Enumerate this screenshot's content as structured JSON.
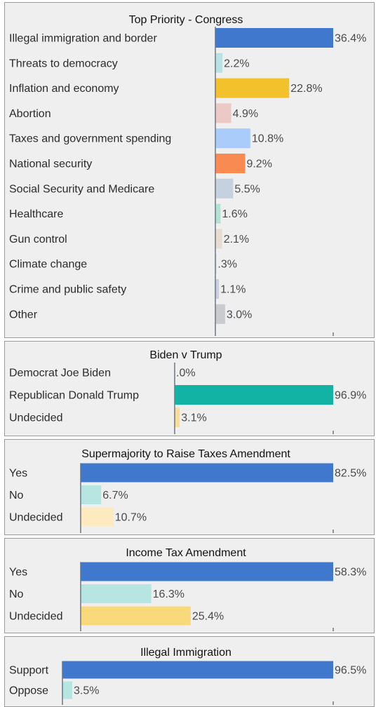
{
  "chart_data": [
    {
      "type": "bar",
      "orientation": "horizontal",
      "title": "Top Priority - Congress",
      "categories": [
        "Illegal immigration and border",
        "Threats to democracy",
        "Inflation and economy",
        "Abortion",
        "Taxes and government spending",
        "National security",
        "Social Security and Medicare",
        "Healthcare",
        "Gun control",
        "Climate change",
        "Crime and public safety",
        "Other"
      ],
      "values": [
        36.4,
        2.2,
        22.8,
        4.9,
        10.8,
        9.2,
        5.5,
        1.6,
        2.1,
        0.3,
        1.1,
        3.0
      ],
      "value_labels": [
        "36.4%",
        "2.2%",
        "22.8%",
        "4.9%",
        "10.8%",
        "9.2%",
        "5.5%",
        "1.6%",
        "2.1%",
        ".3%",
        "1.1%",
        "3.0%"
      ],
      "colors": [
        "#3f78cc",
        "#b7e3e3",
        "#f2c12b",
        "#edc9c6",
        "#aaccfa",
        "#f98a52",
        "#c5d1df",
        "#b5e0d8",
        "#e4ddd0",
        "#cfd8de",
        "#c9cfe0",
        "#c9cbce"
      ],
      "xlim": [
        0,
        36.4
      ]
    },
    {
      "type": "bar",
      "orientation": "horizontal",
      "title": "Biden v Trump",
      "categories": [
        "Democrat Joe Biden",
        "Republican Donald Trump",
        "Undecided"
      ],
      "values": [
        0.0,
        96.9,
        3.1
      ],
      "value_labels": [
        ".0%",
        "96.9%",
        "3.1%"
      ],
      "colors": [
        "#8fb0e0",
        "#12b2a4",
        "#f8df99"
      ],
      "xlim": [
        0,
        96.9
      ]
    },
    {
      "type": "bar",
      "orientation": "horizontal",
      "title": "Supermajority to Raise Taxes Amendment",
      "categories": [
        "Yes",
        "No",
        "Undecided"
      ],
      "values": [
        82.5,
        6.7,
        10.7
      ],
      "value_labels": [
        "82.5%",
        "6.7%",
        "10.7%"
      ],
      "colors": [
        "#3f78cc",
        "#b7e5e2",
        "#fdeabf"
      ],
      "xlim": [
        0,
        82.5
      ]
    },
    {
      "type": "bar",
      "orientation": "horizontal",
      "title": "Income Tax Amendment",
      "categories": [
        "Yes",
        "No",
        "Undecided"
      ],
      "values": [
        58.3,
        16.3,
        25.4
      ],
      "value_labels": [
        "58.3%",
        "16.3%",
        "25.4%"
      ],
      "colors": [
        "#3f78cc",
        "#b7e5e2",
        "#f8d97c"
      ],
      "xlim": [
        0,
        58.3
      ]
    },
    {
      "type": "bar",
      "orientation": "horizontal",
      "title": "Illegal Immigration",
      "categories": [
        "Support",
        "Oppose"
      ],
      "values": [
        96.5,
        3.5
      ],
      "value_labels": [
        "96.5%",
        "3.5%"
      ],
      "colors": [
        "#3f78cc",
        "#b7e5e2"
      ],
      "xlim": [
        0,
        96.5
      ]
    }
  ]
}
